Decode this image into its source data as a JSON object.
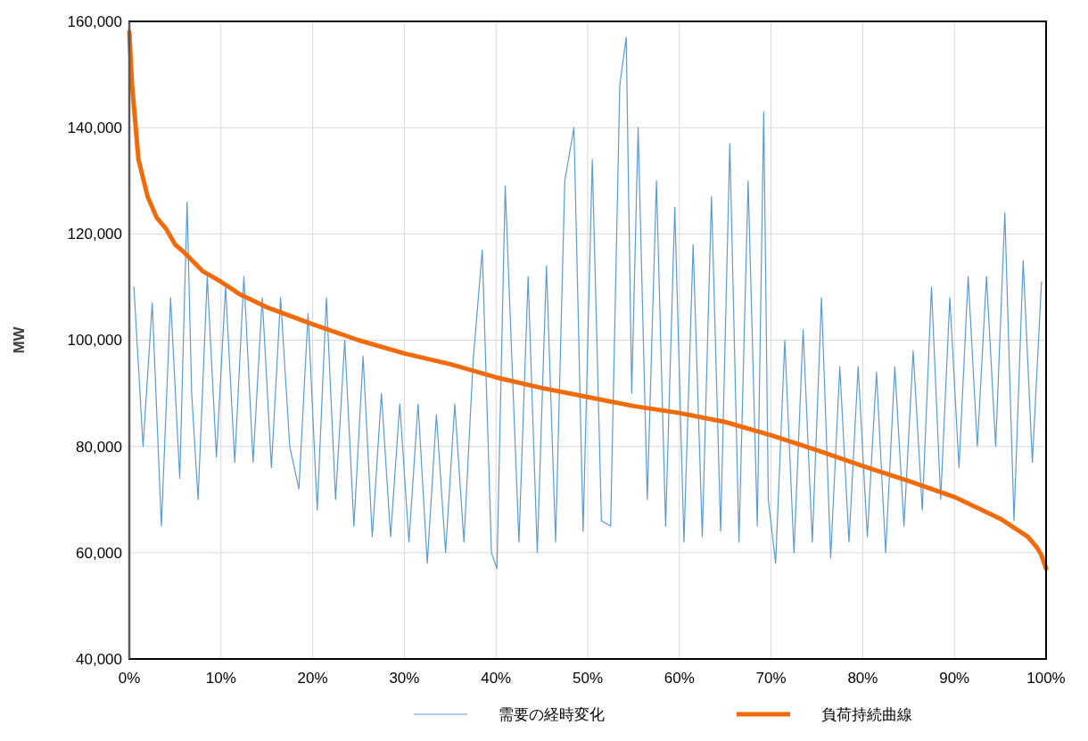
{
  "chart_data": {
    "type": "line",
    "ylabel": "MW",
    "xlim": [
      0,
      100
    ],
    "ylim": [
      40000,
      160000
    ],
    "xticks": [
      {
        "value": 0,
        "label": "0%"
      },
      {
        "value": 10,
        "label": "10%"
      },
      {
        "value": 20,
        "label": "20%"
      },
      {
        "value": 30,
        "label": "30%"
      },
      {
        "value": 40,
        "label": "40%"
      },
      {
        "value": 50,
        "label": "50%"
      },
      {
        "value": 60,
        "label": "60%"
      },
      {
        "value": 70,
        "label": "70%"
      },
      {
        "value": 80,
        "label": "80%"
      },
      {
        "value": 90,
        "label": "90%"
      },
      {
        "value": 100,
        "label": "100%"
      }
    ],
    "yticks": [
      {
        "value": 40000,
        "label": "40,000"
      },
      {
        "value": 60000,
        "label": "60,000"
      },
      {
        "value": 80000,
        "label": "80,000"
      },
      {
        "value": 100000,
        "label": "100,000"
      },
      {
        "value": 120000,
        "label": "120,000"
      },
      {
        "value": 140000,
        "label": "140,000"
      },
      {
        "value": 160000,
        "label": "160,000"
      }
    ],
    "grid": true,
    "legend": "bottom",
    "marker": "none",
    "line_style": "solid",
    "series": [
      {
        "name": "需要の経時変化",
        "color": "#5b9bd5",
        "x": [
          0.5,
          1.5,
          2.5,
          3.5,
          4.5,
          5.5,
          6.3,
          6.8,
          7.5,
          8.5,
          9.5,
          10.5,
          11.5,
          12.5,
          13.5,
          14.5,
          15.5,
          16.5,
          17.5,
          18.5,
          19.5,
          20.5,
          21.5,
          22.5,
          23.5,
          24.5,
          25.5,
          26.5,
          27.5,
          28.5,
          29.5,
          30.5,
          31.5,
          32.5,
          33.5,
          34.5,
          35.5,
          36.5,
          37.5,
          38.5,
          39.5,
          40.1,
          41,
          42.5,
          43.5,
          44.5,
          45.5,
          46.5,
          47.5,
          48.5,
          49.5,
          50.5,
          51.5,
          52.5,
          53.5,
          54.2,
          54.8,
          55.5,
          56.5,
          57.5,
          58.5,
          59.5,
          60.5,
          61.5,
          62.5,
          63.5,
          64.5,
          65.5,
          66.5,
          67.5,
          68.5,
          69.2,
          69.7,
          70.5,
          71.5,
          72.5,
          73.5,
          74.5,
          75.5,
          76.5,
          77.5,
          78.5,
          79.5,
          80.5,
          81.5,
          82.5,
          83.5,
          84.5,
          85.5,
          86.5,
          87.5,
          88.5,
          89.5,
          90.5,
          91.5,
          92.5,
          93.5,
          94.5,
          95.5,
          96.5,
          97.5,
          98.5,
          99.5
        ],
        "values": [
          110000,
          80000,
          107000,
          65000,
          108000,
          74000,
          126000,
          90000,
          70000,
          112000,
          78000,
          110000,
          77000,
          112000,
          77000,
          108000,
          76000,
          108000,
          80000,
          72000,
          105000,
          68000,
          108000,
          70000,
          100000,
          65000,
          97000,
          63000,
          90000,
          63000,
          88000,
          62000,
          88000,
          58000,
          86000,
          60000,
          88000,
          62000,
          96000,
          117000,
          60000,
          57000,
          129000,
          62000,
          112000,
          60000,
          114000,
          62000,
          130000,
          140000,
          64000,
          134000,
          66000,
          65000,
          148000,
          157000,
          90000,
          140000,
          70000,
          130000,
          65000,
          125000,
          62000,
          118000,
          63000,
          127000,
          64000,
          137000,
          62000,
          130000,
          65000,
          143000,
          70000,
          58000,
          100000,
          60000,
          102000,
          62000,
          108000,
          59000,
          95000,
          62000,
          95000,
          63000,
          94000,
          60000,
          95000,
          65000,
          98000,
          68000,
          110000,
          70000,
          108000,
          76000,
          112000,
          80000,
          112000,
          80000,
          124000,
          66000,
          115000,
          77000,
          111000
        ]
      },
      {
        "name": "負荷持続曲線",
        "color": "#f26b0a",
        "x": [
          0,
          0.3,
          1,
          2,
          3,
          4,
          5,
          6,
          8,
          10,
          12,
          15,
          20,
          25,
          30,
          35,
          40,
          45,
          50,
          55,
          60,
          65,
          70,
          75,
          80,
          85,
          90,
          95,
          98,
          99,
          99.5,
          100
        ],
        "values": [
          158000,
          148000,
          134000,
          127000,
          123000,
          121000,
          118000,
          116500,
          113000,
          111000,
          108700,
          106200,
          103000,
          100000,
          97500,
          95500,
          93000,
          91000,
          89300,
          87600,
          86300,
          84600,
          82100,
          79300,
          76300,
          73500,
          70500,
          66400,
          63000,
          61000,
          59500,
          57000
        ]
      }
    ]
  }
}
